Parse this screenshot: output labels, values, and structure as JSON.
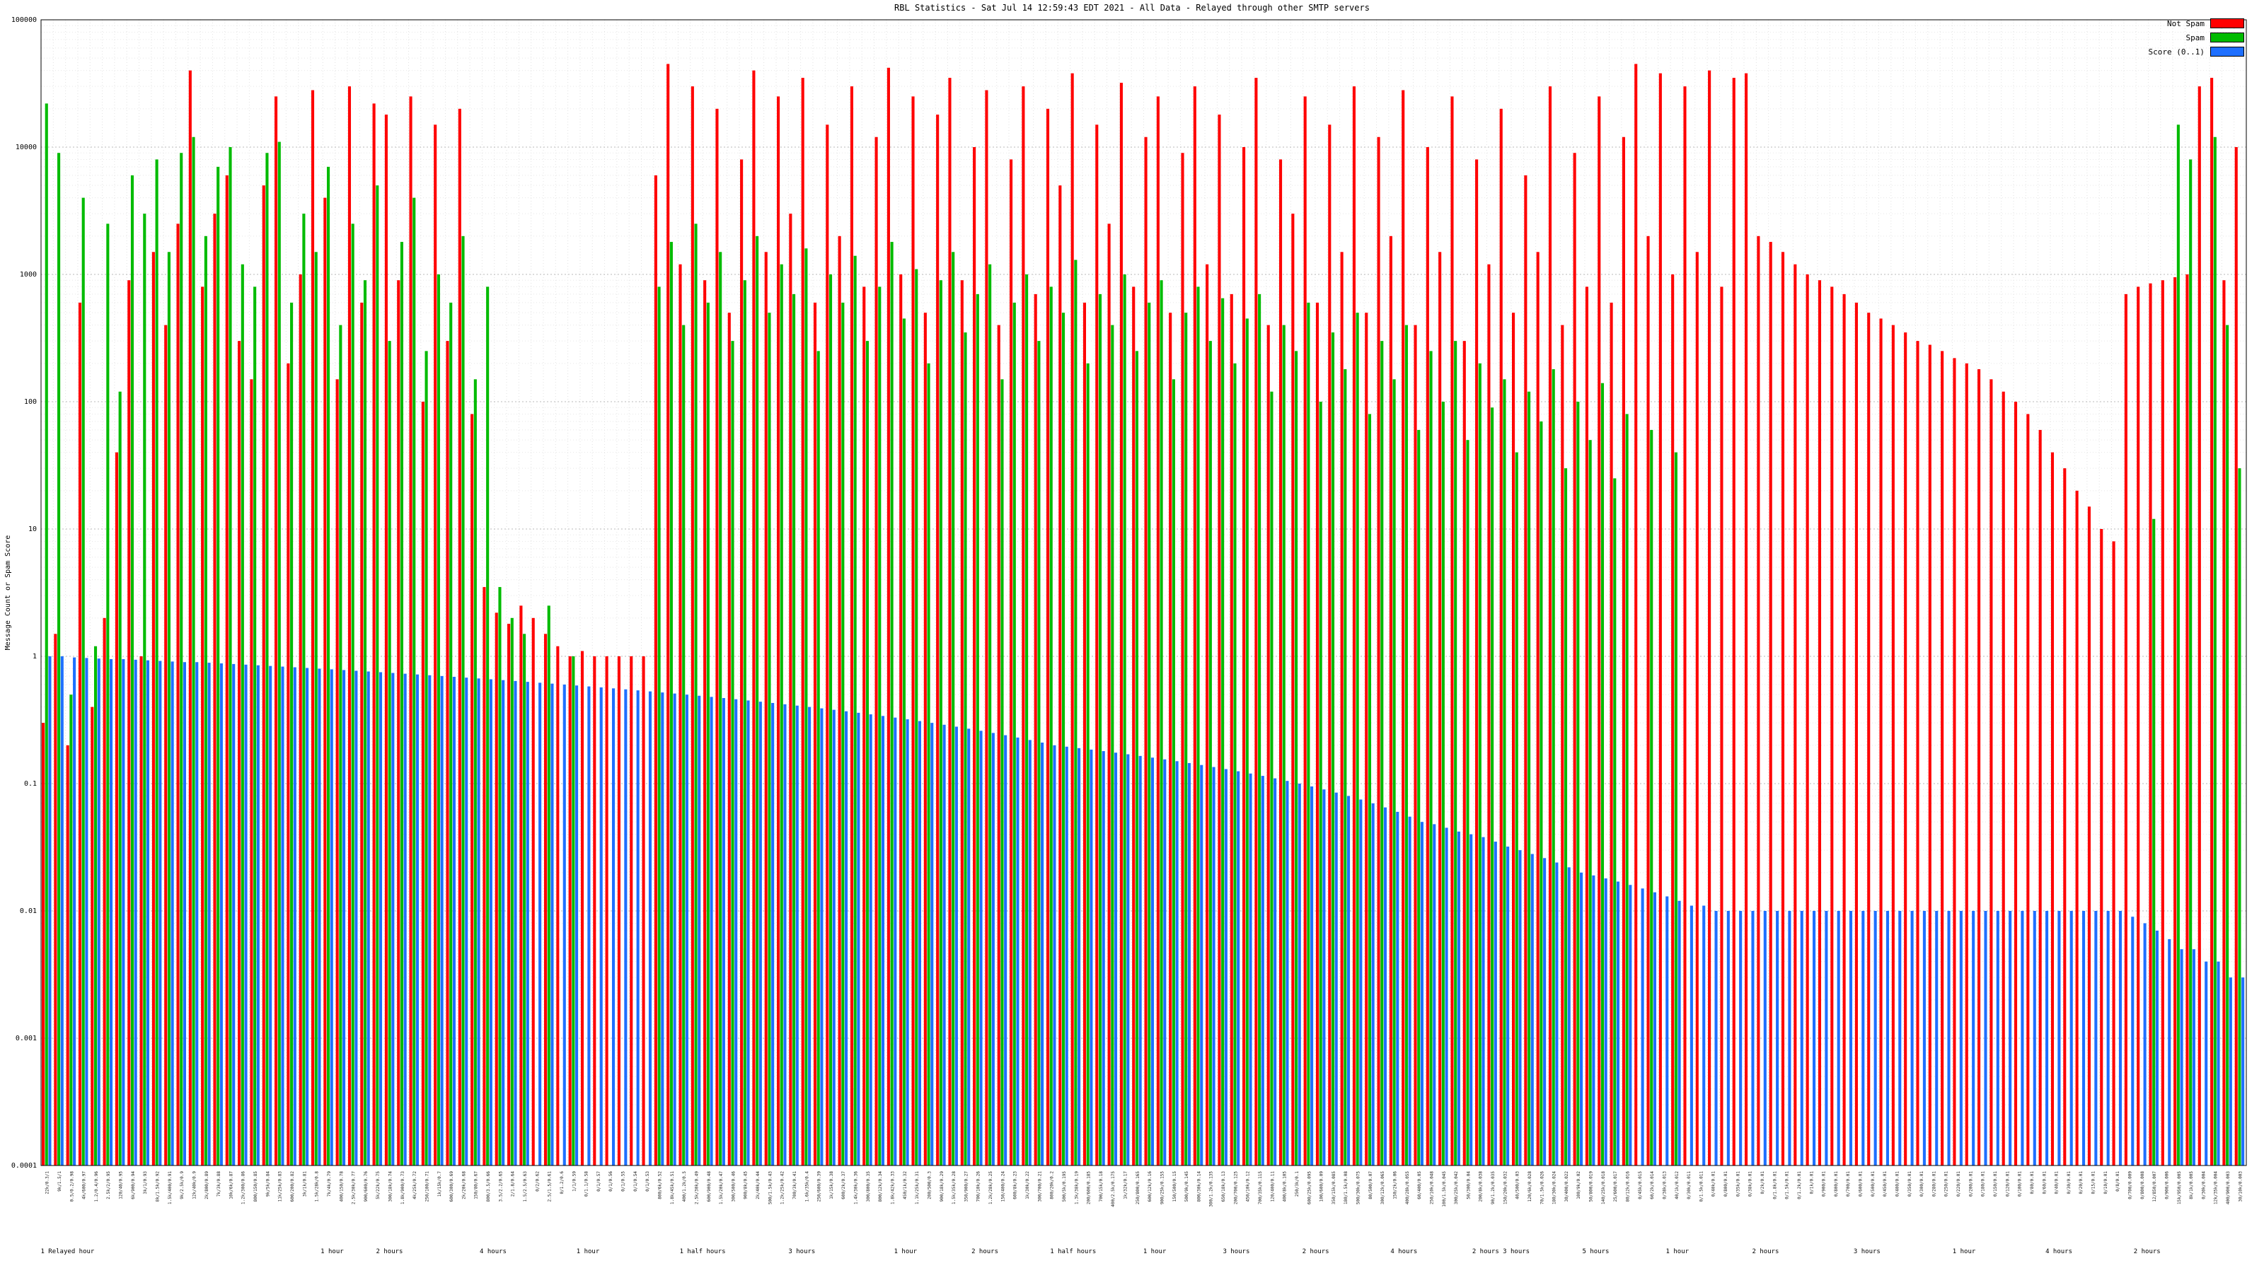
{
  "title": "RBL Statistics - Sat Jul 14 12:59:43 EDT 2021 - All Data - Relayed through other SMTP servers",
  "legend": [
    {
      "label": "Not Spam",
      "color": "#ff0000"
    },
    {
      "label": "Spam",
      "color": "#00bb00"
    },
    {
      "label": "Score (0..1)",
      "color": "#1e6fff"
    }
  ],
  "chart_data": {
    "type": "bar",
    "yscale": "log",
    "ylim": [
      0.0001,
      100000
    ],
    "ylabel": "Message Count or Spam Score",
    "y_ticks": [
      "100000",
      "10000",
      "1000",
      "100",
      "10",
      "1",
      "0.1",
      "0.01",
      "0.001",
      "0.0001"
    ],
    "grid": true,
    "legend_position": "top-right",
    "series": [
      {
        "name": "Not Spam",
        "color": "#ff0000",
        "values": [
          0.3,
          1.5,
          0.2,
          600,
          0.4,
          2,
          40,
          900,
          1,
          1500,
          400,
          2500,
          40000,
          800,
          3000,
          6000,
          300,
          150,
          5000,
          25000,
          200,
          1000,
          28000,
          4000,
          150,
          30000,
          600,
          22000,
          18000,
          900,
          25000,
          100,
          15000,
          300,
          20000,
          80,
          3.5,
          2.2,
          1.8,
          2.5,
          2,
          1.5,
          1.2,
          1,
          1.1,
          1,
          1,
          1,
          1,
          1,
          6000,
          45000,
          1200,
          30000,
          900,
          20000,
          500,
          8000,
          40000,
          1500,
          25000,
          3000,
          35000,
          600,
          15000,
          2000,
          30000,
          800,
          12000,
          42000,
          1000,
          25000,
          500,
          18000,
          35000,
          900,
          10000,
          28000,
          400,
          8000,
          30000,
          700,
          20000,
          5000,
          38000,
          600,
          15000,
          2500,
          32000,
          800,
          12000,
          25000,
          500,
          9000,
          30000,
          1200,
          18000,
          700,
          10000,
          35000,
          400,
          8000,
          3000,
          25000,
          600,
          15000,
          1500,
          30000,
          500,
          12000,
          2000,
          28000,
          400,
          10000,
          1500,
          25000,
          300,
          8000,
          1200,
          20000,
          500,
          6000,
          1500,
          30000,
          400,
          9000,
          800,
          25000,
          600,
          12000,
          45000,
          2000,
          38000,
          1000,
          30000,
          1500,
          40000,
          800,
          35000,
          38000,
          2000,
          1800,
          1500,
          1200,
          1000,
          900,
          800,
          700,
          600,
          500,
          450,
          400,
          350,
          300,
          280,
          250,
          220,
          200,
          180,
          150,
          120,
          100,
          80,
          60,
          40,
          30,
          20,
          15,
          10,
          8,
          700,
          800,
          850,
          900,
          950,
          1000,
          30000,
          35000,
          900,
          10000
        ]
      },
      {
        "name": "Spam",
        "color": "#00bb00",
        "values": [
          22000,
          9000,
          0.5,
          4000,
          1.2,
          2500,
          120,
          6000,
          3000,
          8000,
          1500,
          9000,
          12000,
          2000,
          7000,
          10000,
          1200,
          800,
          9000,
          11000,
          600,
          3000,
          1500,
          7000,
          400,
          2500,
          900,
          5000,
          300,
          1800,
          4000,
          250,
          1000,
          600,
          2000,
          150,
          800,
          3.5,
          2,
          1.5,
          0,
          2.5,
          0,
          1,
          0,
          0,
          0,
          0,
          0,
          0,
          800,
          1800,
          400,
          2500,
          600,
          1500,
          300,
          900,
          2000,
          500,
          1200,
          700,
          1600,
          250,
          1000,
          600,
          1400,
          300,
          800,
          1800,
          450,
          1100,
          200,
          900,
          1500,
          350,
          700,
          1200,
          150,
          600,
          1000,
          300,
          800,
          500,
          1300,
          200,
          700,
          400,
          1000,
          250,
          600,
          900,
          150,
          500,
          800,
          300,
          650,
          200,
          450,
          700,
          120,
          400,
          250,
          600,
          100,
          350,
          180,
          500,
          80,
          300,
          150,
          400,
          60,
          250,
          100,
          300,
          50,
          200,
          90,
          150,
          40,
          120,
          70,
          180,
          30,
          100,
          50,
          140,
          25,
          80,
          0,
          60,
          0,
          40,
          0,
          0,
          0,
          0,
          0,
          0,
          0,
          0,
          0,
          0,
          0,
          0,
          0,
          0,
          0,
          0,
          0,
          0,
          0,
          0,
          0,
          0,
          0,
          0,
          0,
          0,
          0,
          0,
          0,
          0,
          0,
          0,
          0,
          0,
          0,
          0,
          0,
          0,
          12,
          0,
          15000,
          8000,
          0,
          12000,
          400,
          30
        ]
      },
      {
        "name": "Score (0..1)",
        "color": "#1e6fff",
        "values": [
          1,
          1,
          0.98,
          0.97,
          0.96,
          0.95,
          0.95,
          0.94,
          0.93,
          0.92,
          0.91,
          0.9,
          0.9,
          0.89,
          0.88,
          0.87,
          0.86,
          0.85,
          0.84,
          0.83,
          0.82,
          0.81,
          0.8,
          0.79,
          0.78,
          0.77,
          0.76,
          0.75,
          0.74,
          0.73,
          0.72,
          0.71,
          0.7,
          0.69,
          0.68,
          0.67,
          0.66,
          0.65,
          0.64,
          0.63,
          0.62,
          0.61,
          0.6,
          0.59,
          0.58,
          0.57,
          0.56,
          0.55,
          0.54,
          0.53,
          0.52,
          0.51,
          0.5,
          0.49,
          0.48,
          0.47,
          0.46,
          0.45,
          0.44,
          0.43,
          0.42,
          0.41,
          0.4,
          0.39,
          0.38,
          0.37,
          0.36,
          0.35,
          0.34,
          0.33,
          0.32,
          0.31,
          0.3,
          0.29,
          0.28,
          0.27,
          0.26,
          0.25,
          0.24,
          0.23,
          0.22,
          0.21,
          0.2,
          0.195,
          0.19,
          0.185,
          0.18,
          0.175,
          0.17,
          0.165,
          0.16,
          0.155,
          0.15,
          0.145,
          0.14,
          0.135,
          0.13,
          0.125,
          0.12,
          0.115,
          0.11,
          0.105,
          0.1,
          0.095,
          0.09,
          0.085,
          0.08,
          0.075,
          0.07,
          0.065,
          0.06,
          0.055,
          0.05,
          0.048,
          0.045,
          0.042,
          0.04,
          0.038,
          0.035,
          0.032,
          0.03,
          0.028,
          0.026,
          0.024,
          0.022,
          0.02,
          0.019,
          0.018,
          0.017,
          0.016,
          0.015,
          0.014,
          0.013,
          0.012,
          0.011,
          0.011,
          0.01,
          0.01,
          0.01,
          0.01,
          0.01,
          0.01,
          0.01,
          0.01,
          0.01,
          0.01,
          0.01,
          0.01,
          0.01,
          0.01,
          0.01,
          0.01,
          0.01,
          0.01,
          0.01,
          0.01,
          0.01,
          0.01,
          0.01,
          0.01,
          0.01,
          0.01,
          0.01,
          0.01,
          0.01,
          0.01,
          0.01,
          0.01,
          0.01,
          0.01,
          0.009,
          0.008,
          0.007,
          0.006,
          0.005,
          0.005,
          0.004,
          0.004,
          0.003,
          0.003
        ]
      }
    ],
    "x_cluster_labels": [
      {
        "text": "1 Relayed hour",
        "pos": 0.012
      },
      {
        "text": "1 hour",
        "pos": 0.132
      },
      {
        "text": "2 hours",
        "pos": 0.158
      },
      {
        "text": "4 hours",
        "pos": 0.205
      },
      {
        "text": "1 hour",
        "pos": 0.248
      },
      {
        "text": "1 half hours",
        "pos": 0.3
      },
      {
        "text": "3 hours",
        "pos": 0.345
      },
      {
        "text": "1 hour",
        "pos": 0.392
      },
      {
        "text": "2 hours",
        "pos": 0.428
      },
      {
        "text": "1 half hours",
        "pos": 0.468
      },
      {
        "text": "1 hour",
        "pos": 0.505
      },
      {
        "text": "3 hours",
        "pos": 0.542
      },
      {
        "text": "2 hours",
        "pos": 0.578
      },
      {
        "text": "4 hours",
        "pos": 0.618
      },
      {
        "text": "2 hours 3 hours",
        "pos": 0.662
      },
      {
        "text": "5 hours",
        "pos": 0.705
      },
      {
        "text": "1 hour",
        "pos": 0.742
      },
      {
        "text": "2 hours",
        "pos": 0.782
      },
      {
        "text": "3 hours",
        "pos": 0.828
      },
      {
        "text": "1 hour",
        "pos": 0.872
      },
      {
        "text": "4 hours",
        "pos": 0.915
      },
      {
        "text": "2 hours",
        "pos": 0.955
      }
    ]
  }
}
